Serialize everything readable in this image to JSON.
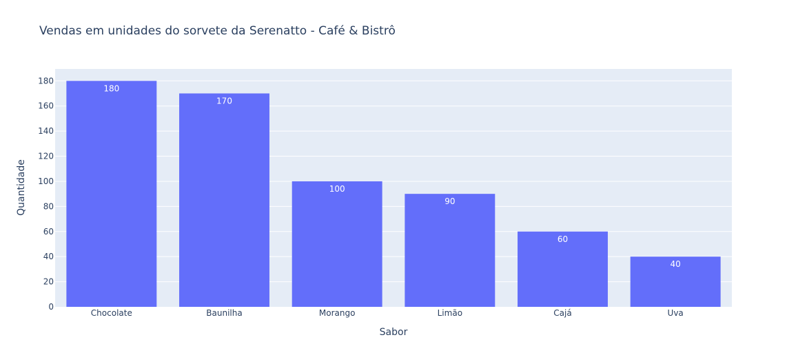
{
  "chart_data": {
    "type": "bar",
    "title": "Vendas em unidades do sorvete da Serenatto - Café & Bistrô",
    "xlabel": "Sabor",
    "ylabel": "Quantidade",
    "categories": [
      "Chocolate",
      "Baunilha",
      "Morango",
      "Limão",
      "Cajá",
      "Uva"
    ],
    "values": [
      180,
      170,
      100,
      90,
      60,
      40
    ],
    "data_labels": [
      "180",
      "170",
      "100",
      "90",
      "60",
      "40"
    ],
    "ylim": [
      0,
      189.5
    ],
    "yticks": [
      0,
      20,
      40,
      60,
      80,
      100,
      120,
      140,
      160,
      180
    ],
    "grid": true,
    "legend": "none",
    "colors": {
      "bar": "#636efa",
      "plot_background": "#e5ecf6",
      "gridline": "#ffffff",
      "text": "#2a3f5f",
      "data_label": "#ffffff"
    }
  }
}
